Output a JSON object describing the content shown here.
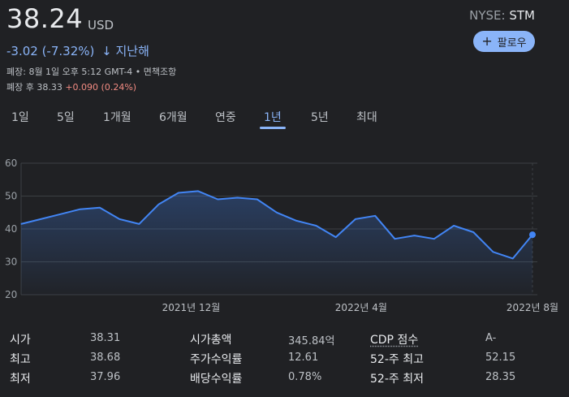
{
  "quote": {
    "price": "38.24",
    "currency": "USD",
    "exchange": "NYSE: ",
    "ticker": "STM",
    "follow_label": "팔로우",
    "change": "-3.02 (-7.32%)",
    "change_arrow": "↓",
    "change_period": "지난해",
    "close_info": "폐장: 8월 1일 오후 5:12 GMT-4 • 면책조항",
    "after_hours_label": "폐장 후 38.33",
    "after_hours_change": "+0.090 (0.24%)"
  },
  "tabs": [
    "1일",
    "5일",
    "1개월",
    "6개월",
    "연중",
    "1년",
    "5년",
    "최대"
  ],
  "active_tab": "1년",
  "chart_data": {
    "type": "area",
    "x_ticks": [
      "2021년 12월",
      "2022년 4월",
      "2022년 8월"
    ],
    "y_ticks": [
      60,
      50,
      40,
      30,
      20
    ],
    "ylim": [
      20,
      60
    ],
    "x": [
      "2021-08-02",
      "2021-08-16",
      "2021-08-30",
      "2021-09-13",
      "2021-09-27",
      "2021-10-11",
      "2021-10-25",
      "2021-11-08",
      "2021-11-22",
      "2021-12-06",
      "2021-12-20",
      "2022-01-03",
      "2022-01-17",
      "2022-01-31",
      "2022-02-14",
      "2022-02-28",
      "2022-03-14",
      "2022-03-28",
      "2022-04-11",
      "2022-04-25",
      "2022-05-09",
      "2022-05-23",
      "2022-06-06",
      "2022-06-20",
      "2022-07-04",
      "2022-07-18",
      "2022-08-01"
    ],
    "values": [
      41.5,
      43.0,
      44.5,
      46.0,
      46.5,
      43.0,
      41.5,
      47.5,
      51.0,
      51.5,
      49.0,
      49.5,
      49.0,
      45.0,
      42.5,
      41.0,
      37.5,
      43.0,
      44.0,
      37.0,
      38.0,
      37.0,
      41.0,
      39.0,
      33.0,
      31.0,
      38.24
    ],
    "line_color": "#4285f4",
    "grid": true
  },
  "stats": [
    {
      "label": "시가",
      "value": "38.31"
    },
    {
      "label": "최고",
      "value": "38.68"
    },
    {
      "label": "최저",
      "value": "37.96"
    },
    {
      "label": "시가총액",
      "value": "345.84억"
    },
    {
      "label": "주가수익률",
      "value": "12.61"
    },
    {
      "label": "배당수익률",
      "value": "0.78%"
    },
    {
      "label": "CDP 점수",
      "value": "A-"
    },
    {
      "label": "52-주 최고",
      "value": "52.15"
    },
    {
      "label": "52-주 최저",
      "value": "28.35"
    }
  ]
}
